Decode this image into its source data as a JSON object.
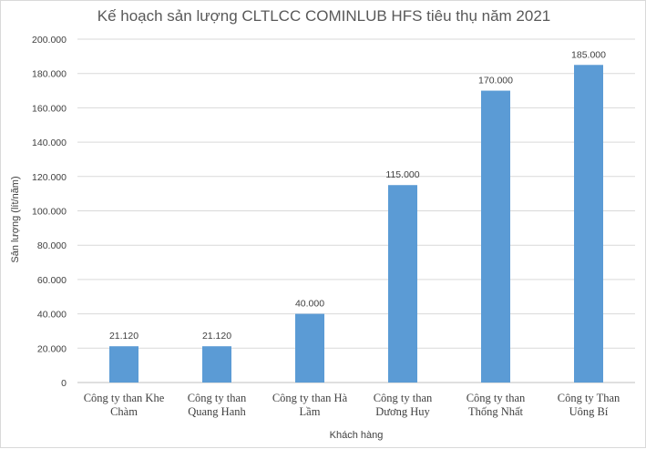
{
  "chart_data": {
    "type": "bar",
    "title": "Kế hoạch sản lượng CLTLCC COMINLUB HFS tiêu thụ năm 2021",
    "xlabel": "Khách hàng",
    "ylabel": "Sản lượng (lít/năm)",
    "categories": [
      [
        "Công ty than Khe",
        "Chàm"
      ],
      [
        "Công ty than",
        "Quang Hanh"
      ],
      [
        "Công ty than Hà",
        "Lầm"
      ],
      [
        "Công ty than",
        "Dương Huy"
      ],
      [
        "Công ty than",
        "Thống Nhất"
      ],
      [
        "Công ty Than",
        "Uông Bí"
      ]
    ],
    "values": [
      21120,
      21120,
      40000,
      115000,
      170000,
      185000
    ],
    "value_labels": [
      "21.120",
      "21.120",
      "40.000",
      "115.000",
      "170.000",
      "185.000"
    ],
    "ylim": [
      0,
      200000
    ],
    "yticks": [
      0,
      20000,
      40000,
      60000,
      80000,
      100000,
      120000,
      140000,
      160000,
      180000,
      200000
    ],
    "ytick_labels": [
      "0",
      "20.000",
      "40.000",
      "60.000",
      "80.000",
      "100.000",
      "120.000",
      "140.000",
      "160.000",
      "180.000",
      "200.000"
    ],
    "grid": true,
    "bar_color": "#5b9bd5",
    "grid_color": "#d9d9d9",
    "text_color": "#404040"
  }
}
